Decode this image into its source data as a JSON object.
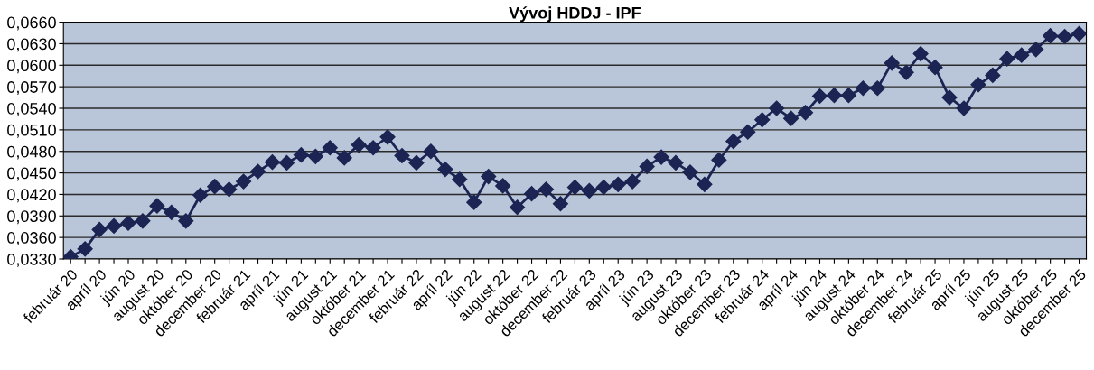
{
  "chart_data": {
    "type": "line",
    "title": "Vývoj HDDJ - IPF",
    "categories": [
      "február 20",
      null,
      "apríl 20",
      null,
      "jún 20",
      null,
      "august 20",
      null,
      "október 20",
      null,
      "december 20",
      null,
      "február 21",
      null,
      "apríl 21",
      null,
      "jún 21",
      null,
      "august 21",
      null,
      "október 21",
      null,
      "december 21",
      null,
      "február 22",
      null,
      "apríl 22",
      null,
      "jún 22",
      null,
      "august 22",
      null,
      "október 22",
      null,
      "december 22",
      null,
      "február 23",
      null,
      "apríl 23",
      null,
      "jún 23",
      null,
      "august 23",
      null,
      "október 23",
      null,
      "december 23",
      null,
      "február 24",
      null,
      "apríl 24",
      null,
      "jún 24",
      null,
      "august 24",
      null,
      "október 24",
      null,
      "december 24",
      null,
      "február 25",
      null,
      "apríl 25",
      null,
      "jún 25",
      null,
      "august 25",
      null,
      "október 25",
      null,
      "december 25"
    ],
    "series": [
      {
        "color": "#1b2452",
        "values": [
          0.0333,
          0.0344,
          0.0371,
          0.0376,
          0.038,
          0.0383,
          0.0404,
          0.0395,
          0.0383,
          0.0419,
          0.0431,
          0.0427,
          0.0438,
          0.0452,
          0.0465,
          0.0464,
          0.0475,
          0.0473,
          0.0485,
          0.0471,
          0.0489,
          0.0485,
          0.05,
          0.0474,
          0.0464,
          0.048,
          0.0455,
          0.0441,
          0.0409,
          0.0445,
          0.0432,
          0.0402,
          0.0421,
          0.0427,
          0.0407,
          0.043,
          0.0425,
          0.043,
          0.0434,
          0.0438,
          0.0459,
          0.0472,
          0.0464,
          0.0451,
          0.0434,
          0.0468,
          0.0494,
          0.0507,
          0.0524,
          0.054,
          0.0526,
          0.0534,
          0.0557,
          0.0558,
          0.0558,
          0.0568,
          0.0568,
          0.0603,
          0.059,
          0.0616,
          0.0597,
          0.0555,
          0.054,
          0.0573,
          0.0586,
          0.0609,
          0.0614,
          0.0622,
          0.0641,
          0.064,
          0.0644
        ]
      }
    ],
    "ylim": [
      0.033,
      0.066
    ],
    "yticks": [
      {
        "value": 0.033,
        "label": "0,0330"
      },
      {
        "value": 0.036,
        "label": "0,0360"
      },
      {
        "value": 0.039,
        "label": "0,0390"
      },
      {
        "value": 0.042,
        "label": "0,0420"
      },
      {
        "value": 0.045,
        "label": "0,0450"
      },
      {
        "value": 0.048,
        "label": "0,0480"
      },
      {
        "value": 0.051,
        "label": "0,0510"
      },
      {
        "value": 0.054,
        "label": "0,0540"
      },
      {
        "value": 0.057,
        "label": "0,0570"
      },
      {
        "value": 0.06,
        "label": "0,0600"
      },
      {
        "value": 0.063,
        "label": "0,0630"
      },
      {
        "value": 0.066,
        "label": "0,0660"
      }
    ],
    "grid": "y",
    "marker": "diamond",
    "line_style": "solid"
  }
}
